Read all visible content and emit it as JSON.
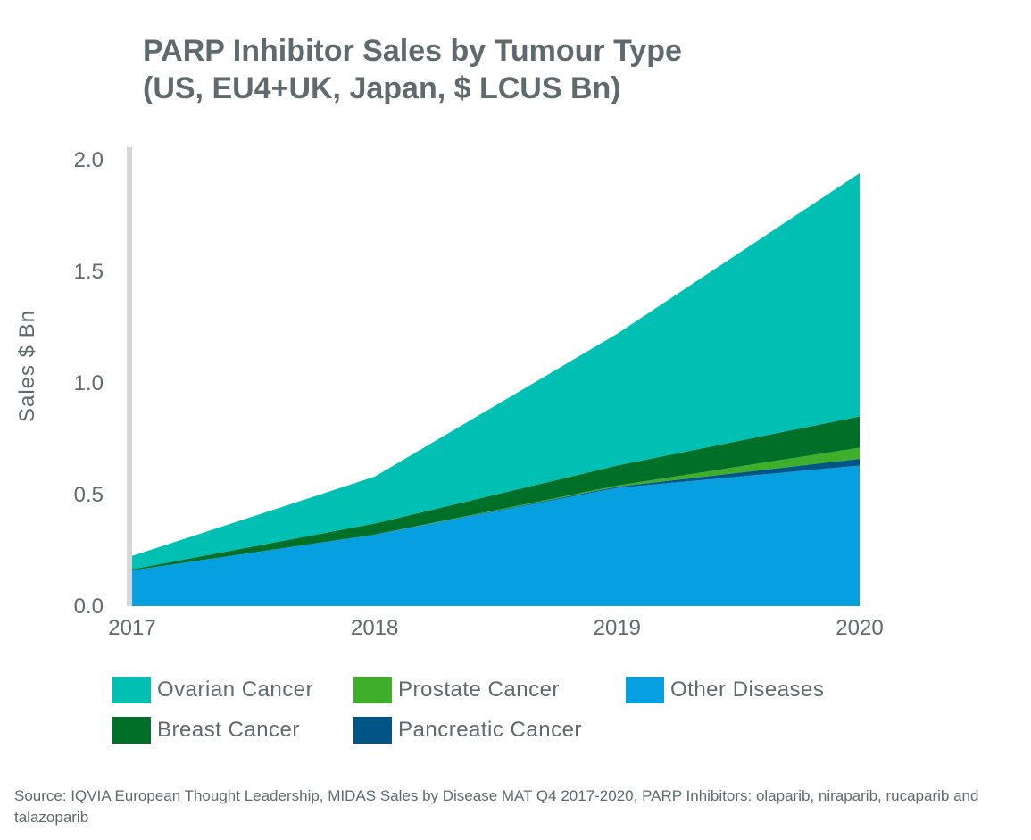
{
  "title": {
    "line1": "PARP Inhibitor Sales by Tumour Type",
    "line2": "(US, EU4+UK, Japan, $ LCUS Bn)"
  },
  "source": "Source: IQVIA European Thought Leadership, MIDAS Sales by Disease MAT Q4 2017-2020, PARP Inhibitors: olaparib, niraparib, rucaparib and talazoparib",
  "colors": {
    "text": "#5f6a6e",
    "axis": "#d6d6d6"
  },
  "chart_data": {
    "type": "area",
    "stacked": true,
    "ylabel": "Sales $ Bn",
    "xlabel": "",
    "x": [
      "2017",
      "2018",
      "2019",
      "2020"
    ],
    "ylim": [
      0,
      2.0
    ],
    "yticks": [
      "0.0",
      "0.5",
      "1.0",
      "1.5",
      "2.0"
    ],
    "grid": false,
    "legend_position": "bottom",
    "series": [
      {
        "name": "Other Diseases",
        "color": "#069fe0",
        "values": [
          0.16,
          0.32,
          0.53,
          0.63
        ]
      },
      {
        "name": "Pancreatic Cancer",
        "color": "#005587",
        "values": [
          0.0,
          0.0,
          0.005,
          0.03
        ]
      },
      {
        "name": "Prostate Cancer",
        "color": "#3fae2a",
        "values": [
          0.0,
          0.0,
          0.005,
          0.05
        ]
      },
      {
        "name": "Breast Cancer",
        "color": "#007029",
        "values": [
          0.005,
          0.05,
          0.09,
          0.14
        ]
      },
      {
        "name": "Ovarian Cancer",
        "color": "#00bfb3",
        "values": [
          0.06,
          0.21,
          0.59,
          1.09
        ]
      }
    ]
  },
  "legend": [
    {
      "label": "Ovarian Cancer",
      "color": "#00bfb3"
    },
    {
      "label": "Prostate Cancer",
      "color": "#3fae2a"
    },
    {
      "label": "Other Diseases",
      "color": "#069fe0"
    },
    {
      "label": "Breast Cancer",
      "color": "#007029"
    },
    {
      "label": "Pancreatic Cancer",
      "color": "#005587"
    }
  ]
}
